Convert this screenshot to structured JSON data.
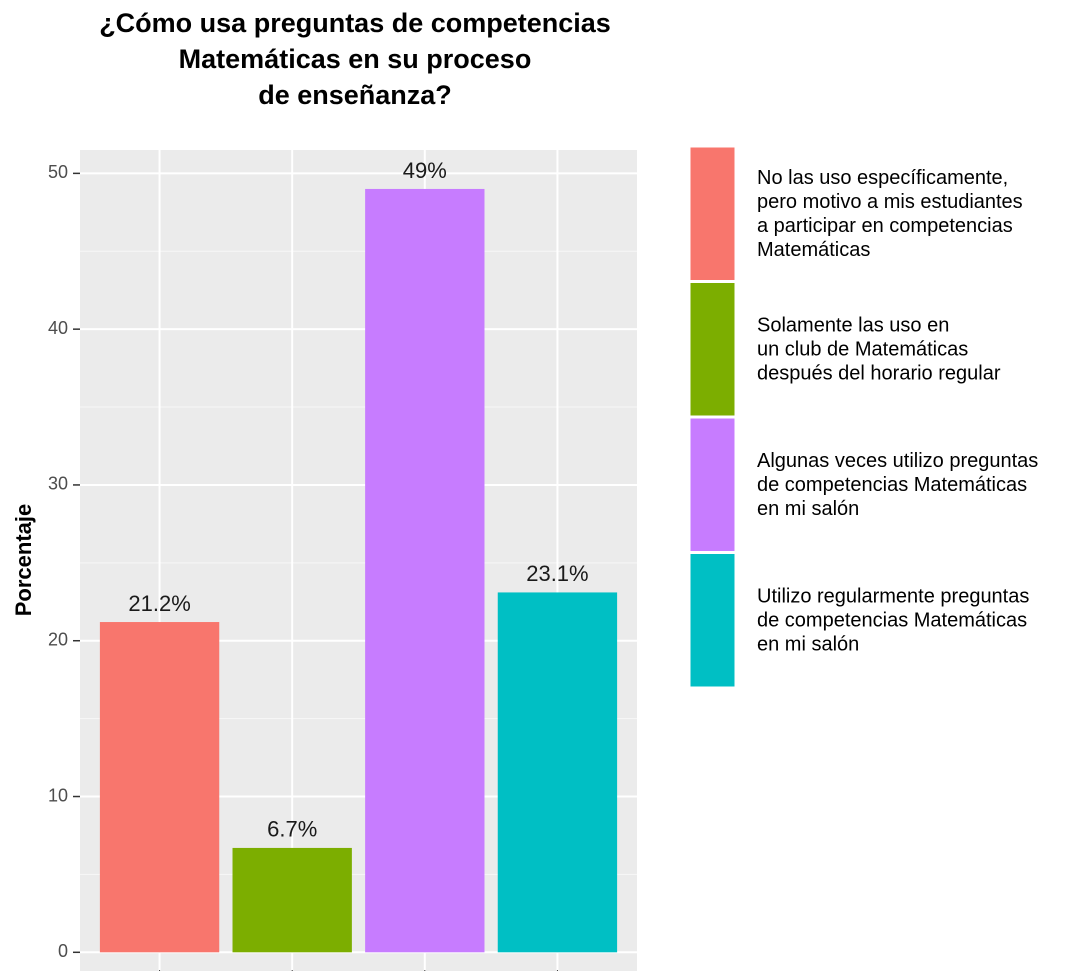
{
  "chart_data": {
    "type": "bar",
    "title": [
      "¿Cómo usa preguntas de competencias",
      "Matemáticas en su proceso",
      "de enseñanza?"
    ],
    "y_label": "Porcentaje",
    "categories": [
      [
        "No las uso específicamente,",
        "pero motivo a mis estudiantes",
        "a participar en competencias",
        "Matemáticas"
      ],
      [
        "Solamente las uso en",
        "un club de Matemáticas",
        "después del horario regular"
      ],
      [
        "Algunas veces utilizo preguntas",
        "de competencias Matemáticas",
        "en mi salón"
      ],
      [
        "Utilizo regularmente preguntas",
        "de competencias Matemáticas",
        "en mi salón"
      ]
    ],
    "values": [
      21.2,
      6.7,
      49,
      23.1
    ],
    "value_labels": [
      "21.2%",
      "6.7%",
      "49%",
      "23.1%"
    ],
    "colors": [
      "#f8766d",
      "#7cae00",
      "#c77cff",
      "#00bfc4"
    ],
    "ylim": [
      -1.2,
      51.5
    ],
    "yticks": [
      0,
      10,
      20,
      30,
      40,
      50
    ],
    "grid": true,
    "legend": "right"
  }
}
